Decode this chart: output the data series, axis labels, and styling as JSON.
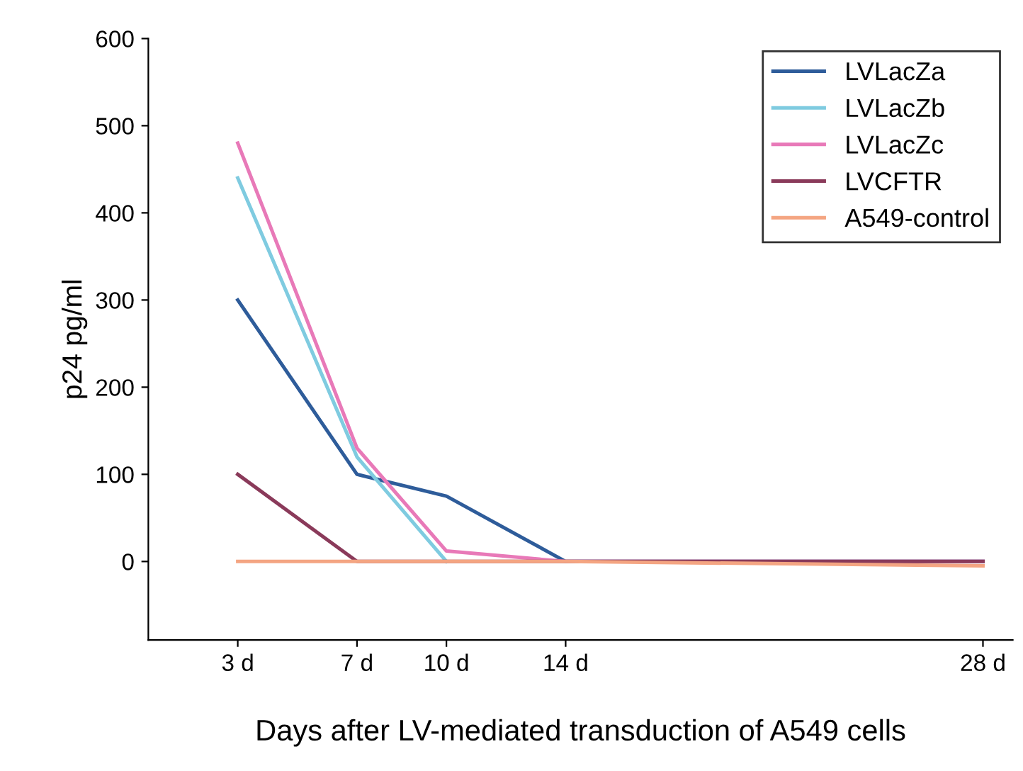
{
  "chart_data": {
    "type": "line",
    "xlabel": "Days after LV-mediated transduction of A549 cells",
    "ylabel": "p24 pg/ml",
    "x": [
      3,
      7,
      10,
      14,
      28
    ],
    "series": [
      {
        "name": "LVLacZa",
        "color": "#2e5c9a",
        "values": [
          300,
          100,
          75,
          0,
          0
        ]
      },
      {
        "name": "LVLacZb",
        "color": "#7fcbe0",
        "values": [
          440,
          120,
          0,
          null,
          null
        ]
      },
      {
        "name": "LVLacZc",
        "color": "#e879b8",
        "values": [
          480,
          130,
          12,
          0,
          0
        ]
      },
      {
        "name": "LVCFTR",
        "color": "#8a3a5a",
        "values": [
          100,
          0,
          0,
          0,
          0
        ]
      },
      {
        "name": "A549-control",
        "color": "#f4a582",
        "values": [
          0,
          0,
          0,
          0,
          -5
        ]
      }
    ],
    "xlim": [
      0,
      29
    ],
    "xticks": [
      {
        "value": 3,
        "label": "3 d"
      },
      {
        "value": 7,
        "label": "7 d"
      },
      {
        "value": 10,
        "label": "10 d"
      },
      {
        "value": 14,
        "label": "14 d"
      },
      {
        "value": 28,
        "label": "28 d"
      }
    ],
    "ylim": [
      -90,
      600
    ],
    "yticks": [
      0,
      100,
      200,
      300,
      400,
      500,
      600
    ],
    "grid": false,
    "legend": "top right",
    "marker": "none",
    "line_style": "solid"
  }
}
